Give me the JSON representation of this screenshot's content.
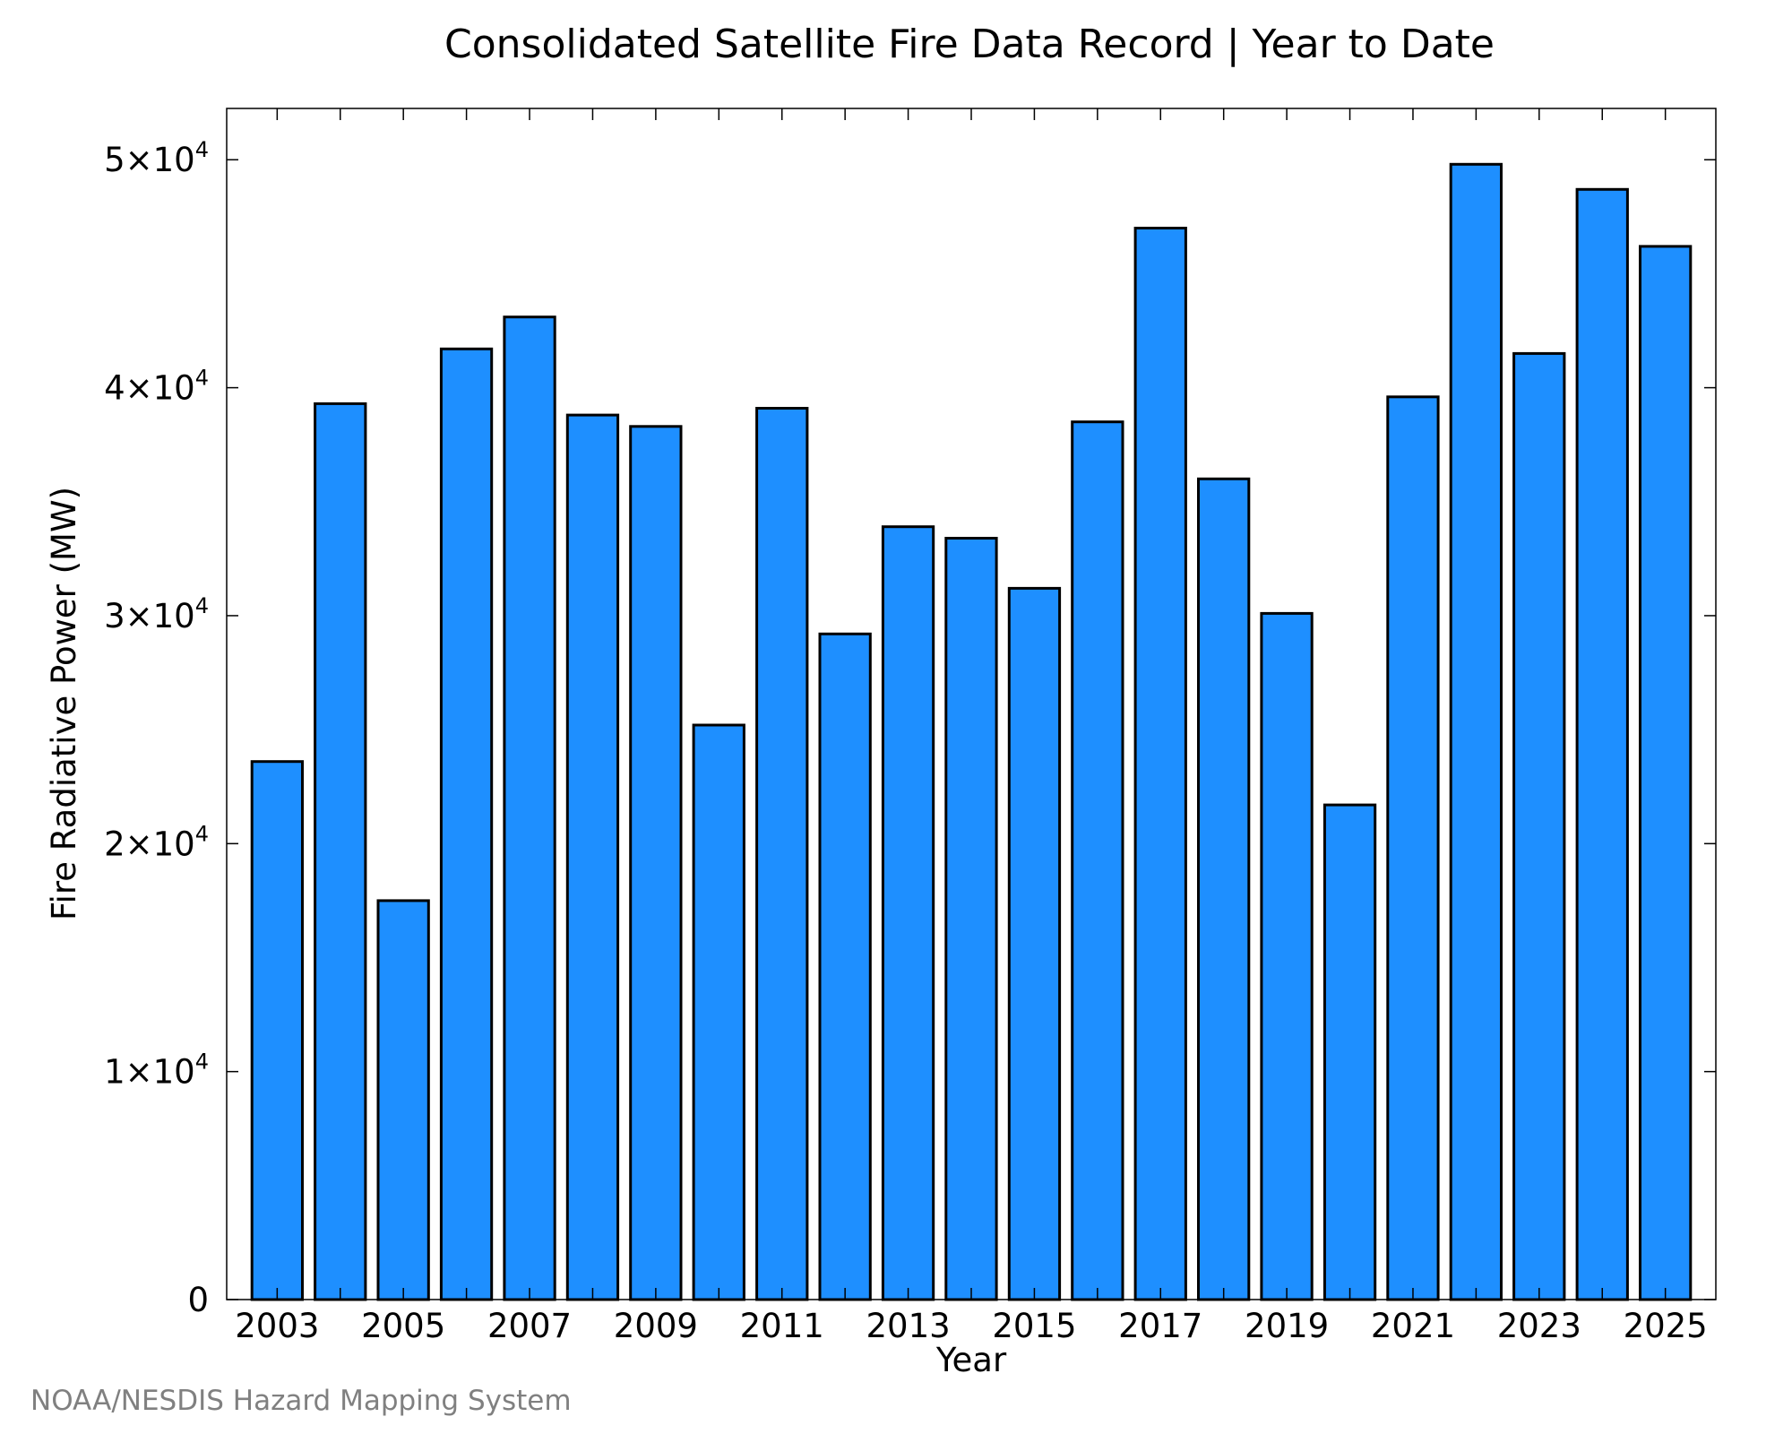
{
  "chart_data": {
    "type": "bar",
    "title": "Consolidated Satellite Fire Data Record | Year to Date",
    "xlabel": "Year",
    "ylabel": "Fire Radiative Power (MW)",
    "source": "NOAA/NESDIS Hazard Mapping System",
    "categories": [
      "2003",
      "2004",
      "2005",
      "2006",
      "2007",
      "2008",
      "2009",
      "2010",
      "2011",
      "2012",
      "2013",
      "2014",
      "2015",
      "2016",
      "2017",
      "2018",
      "2019",
      "2020",
      "2021",
      "2022",
      "2023",
      "2024",
      "2025"
    ],
    "values": [
      23600,
      39300,
      17500,
      41700,
      43100,
      38800,
      38300,
      25200,
      39100,
      29200,
      33900,
      33400,
      31200,
      38500,
      47000,
      36000,
      30100,
      21700,
      39600,
      49800,
      41500,
      48700,
      46200
    ],
    "x_tick_labels": [
      "2003",
      "2005",
      "2007",
      "2009",
      "2011",
      "2013",
      "2015",
      "2017",
      "2019",
      "2021",
      "2023",
      "2025"
    ],
    "y_ticks": [
      {
        "value": 0,
        "mantissa": "0",
        "exponent": ""
      },
      {
        "value": 10000,
        "mantissa": "1×10",
        "exponent": "4"
      },
      {
        "value": 20000,
        "mantissa": "2×10",
        "exponent": "4"
      },
      {
        "value": 30000,
        "mantissa": "3×10",
        "exponent": "4"
      },
      {
        "value": 40000,
        "mantissa": "4×10",
        "exponent": "4"
      },
      {
        "value": 50000,
        "mantissa": "5×10",
        "exponent": "4"
      }
    ],
    "ylim": [
      0,
      52250
    ],
    "xlim": [
      2002.2,
      2025.8
    ],
    "bar_color": "#1E8FFF",
    "grid": false,
    "legend": "none"
  }
}
